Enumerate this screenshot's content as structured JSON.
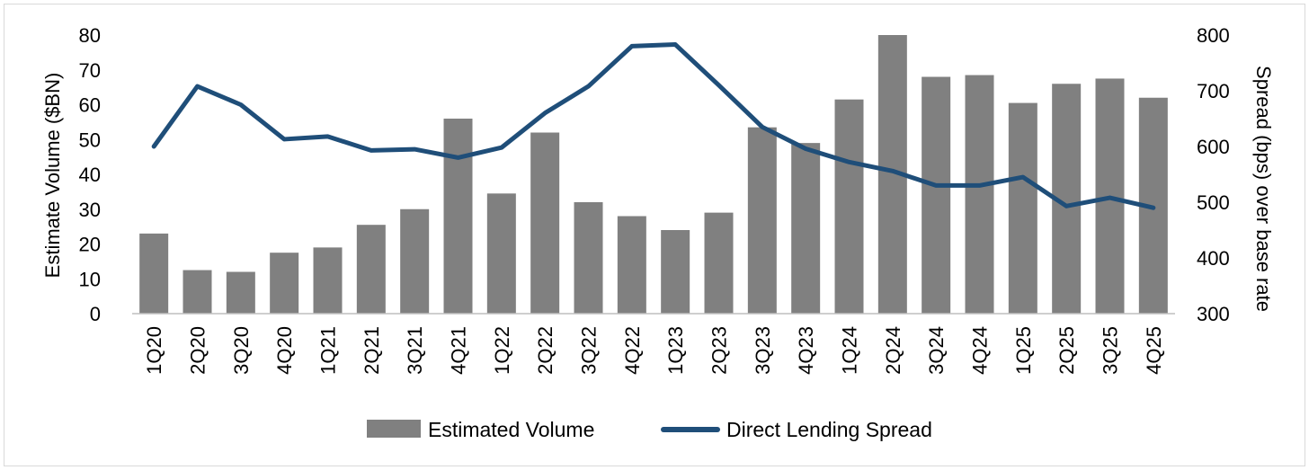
{
  "chart_data": {
    "type": "bar+line",
    "categories": [
      "1Q20",
      "2Q20",
      "3Q20",
      "4Q20",
      "1Q21",
      "2Q21",
      "3Q21",
      "4Q21",
      "1Q22",
      "2Q22",
      "3Q22",
      "4Q22",
      "1Q23",
      "2Q23",
      "3Q23",
      "4Q23",
      "1Q24",
      "2Q24",
      "3Q24",
      "4Q24",
      "1Q25",
      "2Q25",
      "3Q25",
      "4Q25"
    ],
    "series": [
      {
        "name": "Estimated Volume",
        "type": "bar",
        "axis": "left",
        "color": "#808080",
        "values": [
          23,
          12.5,
          12,
          17.5,
          19,
          25.5,
          30,
          56,
          34.5,
          52,
          32,
          28,
          24,
          29,
          53.5,
          49,
          61.5,
          80,
          68,
          68.5,
          60.5,
          66,
          67.5,
          62
        ]
      },
      {
        "name": "Direct Lending Spread",
        "type": "line",
        "axis": "right",
        "color": "#1f4e79",
        "values": [
          600,
          708,
          675,
          613,
          618,
          593,
          595,
          580,
          598,
          660,
          708,
          780,
          783,
          710,
          635,
          596,
          572,
          556,
          530,
          530,
          545,
          493,
          508,
          490
        ]
      }
    ],
    "yleft": {
      "label": "Estimate Volume ($BN)",
      "ylim": [
        0,
        80
      ],
      "ticks": [
        "0",
        "10",
        "20",
        "30",
        "40",
        "50",
        "60",
        "70",
        "80"
      ]
    },
    "yright": {
      "label": "Spread (bps) over base rate",
      "ylim": [
        300,
        800
      ],
      "ticks": [
        "300",
        "400",
        "500",
        "600",
        "700",
        "800"
      ]
    },
    "legend": {
      "position": "bottom",
      "entries": [
        "Estimated Volume",
        "Direct Lending Spread"
      ]
    },
    "grid": false
  }
}
